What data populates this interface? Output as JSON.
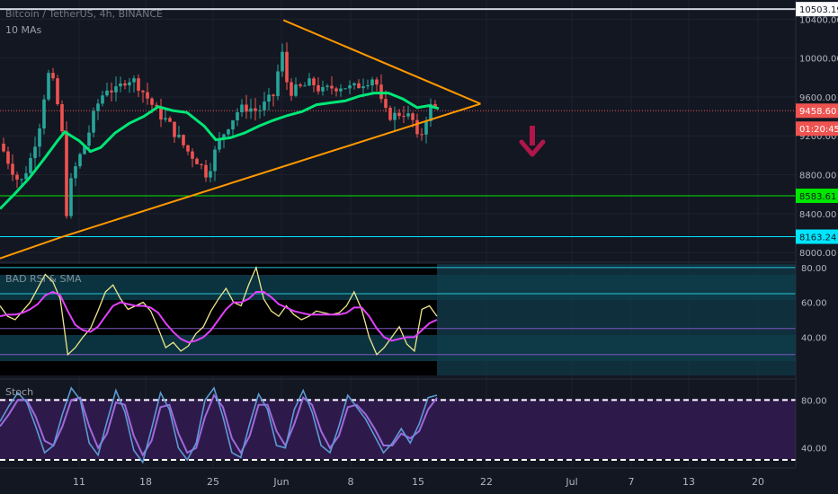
{
  "header": {
    "symbol_line": "Bitcoin / TetherUS, 4h, BINANCE",
    "indicator": "10 MAs"
  },
  "panes": {
    "rsi_label": "BAD RSI & SMA",
    "stoch_label": "Stoch"
  },
  "colors": {
    "bg": "#131722",
    "candle_up": "#26a69a",
    "candle_down": "#ef5350",
    "ma": "#00e676",
    "triangle": "#ff9800",
    "arrow": "#b0164a",
    "rsi_line": "#f0e68c",
    "rsi_sma": "#e040fb",
    "stoch_k": "#5b9bd5",
    "stoch_d": "#9c6ade"
  },
  "chart_data": [
    {
      "type": "candlestick",
      "title": "Bitcoin / TetherUS, 4h, BINANCE",
      "x_ticks": [
        "11",
        "18",
        "25",
        "Jun",
        "8",
        "15",
        "22",
        "Jul",
        "7",
        "13",
        "20"
      ],
      "y_ticks": [
        10400,
        10000,
        9600,
        9200,
        8800,
        8400,
        8000
      ],
      "ylim": [
        7900,
        10560
      ],
      "price_labels": [
        {
          "value": "10503.19",
          "color": "#ffffff",
          "text_color": "#131722"
        },
        {
          "value": "9458.60",
          "color": "#ef5350",
          "text_color": "#ffffff"
        },
        {
          "value": "01:20:45",
          "color": "#ef5350",
          "text_color": "#ffffff"
        },
        {
          "value": "8583.61",
          "color": "#00e600",
          "text_color": "#131722"
        },
        {
          "value": "8163.24",
          "color": "#00e5ff",
          "text_color": "#131722"
        }
      ],
      "levels": [
        {
          "value": 10503.19,
          "color": "#d1d4dc"
        },
        {
          "value": 9458.6,
          "color": "#ef5350",
          "style": "dotted"
        },
        {
          "value": 8583.61,
          "color": "#00e600"
        },
        {
          "value": 8163.24,
          "color": "#00e5ff"
        }
      ],
      "price_path": [
        {
          "x": 0,
          "v": 9120
        },
        {
          "x": 0.7,
          "v": 8900
        },
        {
          "x": 1.4,
          "v": 8700
        },
        {
          "x": 2.1,
          "v": 8950
        },
        {
          "x": 2.8,
          "v": 9350
        },
        {
          "x": 3.3,
          "v": 9850
        },
        {
          "x": 3.8,
          "v": 9700
        },
        {
          "x": 4.3,
          "v": 9250
        },
        {
          "x": 4.6,
          "v": 8400
        },
        {
          "x": 4.9,
          "v": 8700
        },
        {
          "x": 5.3,
          "v": 8900
        },
        {
          "x": 6,
          "v": 9150
        },
        {
          "x": 6.7,
          "v": 9500
        },
        {
          "x": 7.4,
          "v": 9700
        },
        {
          "x": 8.1,
          "v": 9650
        },
        {
          "x": 8.8,
          "v": 9800
        },
        {
          "x": 9.5,
          "v": 9750
        },
        {
          "x": 10.2,
          "v": 9600
        },
        {
          "x": 10.9,
          "v": 9450
        },
        {
          "x": 11.6,
          "v": 9350
        },
        {
          "x": 12.3,
          "v": 9200
        },
        {
          "x": 13,
          "v": 9050
        },
        {
          "x": 13.7,
          "v": 8950
        },
        {
          "x": 14.4,
          "v": 8800
        },
        {
          "x": 15.1,
          "v": 9100
        },
        {
          "x": 15.8,
          "v": 9300
        },
        {
          "x": 16.5,
          "v": 9450
        },
        {
          "x": 17.2,
          "v": 9500
        },
        {
          "x": 17.9,
          "v": 9450
        },
        {
          "x": 18.6,
          "v": 9550
        },
        {
          "x": 19.2,
          "v": 9650
        },
        {
          "x": 19.5,
          "v": 10200
        },
        {
          "x": 19.8,
          "v": 9800
        },
        {
          "x": 20.3,
          "v": 9650
        },
        {
          "x": 21,
          "v": 9700
        },
        {
          "x": 21.7,
          "v": 9750
        },
        {
          "x": 22.4,
          "v": 9650
        },
        {
          "x": 23.1,
          "v": 9700
        },
        {
          "x": 23.8,
          "v": 9720
        },
        {
          "x": 24.5,
          "v": 9680
        },
        {
          "x": 25.2,
          "v": 9750
        },
        {
          "x": 25.9,
          "v": 9800
        },
        {
          "x": 26.3,
          "v": 9700
        },
        {
          "x": 26.6,
          "v": 9450
        },
        {
          "x": 27.3,
          "v": 9400
        },
        {
          "x": 28,
          "v": 9450
        },
        {
          "x": 28.7,
          "v": 9350
        },
        {
          "x": 29.1,
          "v": 9100
        },
        {
          "x": 29.5,
          "v": 9350
        },
        {
          "x": 29.9,
          "v": 9500
        },
        {
          "x": 30.5,
          "v": 9460
        }
      ],
      "ma_path": [
        {
          "x": 0,
          "v": 8450
        },
        {
          "x": 1,
          "v": 8600
        },
        {
          "x": 2,
          "v": 8760
        },
        {
          "x": 3,
          "v": 8950
        },
        {
          "x": 4,
          "v": 9150
        },
        {
          "x": 4.5,
          "v": 9240
        },
        {
          "x": 5.5,
          "v": 9150
        },
        {
          "x": 6.3,
          "v": 9040
        },
        {
          "x": 7,
          "v": 9080
        },
        {
          "x": 8,
          "v": 9230
        },
        {
          "x": 9,
          "v": 9330
        },
        {
          "x": 10,
          "v": 9400
        },
        {
          "x": 11,
          "v": 9500
        },
        {
          "x": 12,
          "v": 9460
        },
        {
          "x": 13,
          "v": 9440
        },
        {
          "x": 14.2,
          "v": 9300
        },
        {
          "x": 15,
          "v": 9160
        },
        {
          "x": 16,
          "v": 9180
        },
        {
          "x": 17,
          "v": 9230
        },
        {
          "x": 18,
          "v": 9300
        },
        {
          "x": 19,
          "v": 9360
        },
        {
          "x": 20,
          "v": 9410
        },
        {
          "x": 21,
          "v": 9450
        },
        {
          "x": 22,
          "v": 9520
        },
        {
          "x": 23,
          "v": 9540
        },
        {
          "x": 24,
          "v": 9560
        },
        {
          "x": 25,
          "v": 9610
        },
        {
          "x": 26,
          "v": 9640
        },
        {
          "x": 27,
          "v": 9640
        },
        {
          "x": 28,
          "v": 9580
        },
        {
          "x": 29,
          "v": 9490
        },
        {
          "x": 29.8,
          "v": 9510
        },
        {
          "x": 30.5,
          "v": 9480
        }
      ],
      "triangle": {
        "apex": {
          "x": 33.4,
          "v": 9530
        },
        "upper_start": {
          "x": 19.7,
          "v": 10390
        },
        "lower_start": {
          "x": 4.3,
          "v": 8160
        }
      }
    },
    {
      "type": "line",
      "title": "BAD RSI & SMA",
      "y_ticks": [
        80,
        60,
        40
      ],
      "ylim": [
        18,
        82
      ],
      "levels": [
        80,
        65,
        45,
        30
      ],
      "rsi": [
        58,
        52,
        50,
        55,
        60,
        68,
        76,
        72,
        62,
        30,
        34,
        40,
        45,
        55,
        66,
        70,
        62,
        56,
        58,
        60,
        55,
        45,
        34,
        37,
        32,
        35,
        42,
        46,
        55,
        62,
        68,
        60,
        58,
        70,
        80,
        62,
        55,
        52,
        58,
        53,
        50,
        52,
        55,
        54,
        53,
        54,
        58,
        66,
        56,
        40,
        30,
        34,
        40,
        46,
        36,
        32,
        56,
        58,
        52
      ],
      "sma": [
        52,
        53,
        53,
        54,
        56,
        59,
        64,
        66,
        64,
        55,
        47,
        44,
        43,
        46,
        52,
        58,
        60,
        59,
        58,
        58,
        57,
        54,
        48,
        43,
        39,
        37,
        38,
        40,
        44,
        50,
        56,
        60,
        60,
        62,
        66,
        66,
        63,
        59,
        57,
        55,
        54,
        53,
        53,
        53,
        53,
        53,
        54,
        57,
        57,
        52,
        45,
        40,
        38,
        39,
        40,
        40,
        44,
        48,
        50
      ]
    },
    {
      "type": "line",
      "title": "Stoch",
      "y_ticks": [
        80,
        40
      ],
      "ylim": [
        24,
        96
      ],
      "levels": [
        80,
        30
      ],
      "k": [
        62,
        75,
        86,
        78,
        58,
        36,
        42,
        68,
        90,
        80,
        44,
        34,
        62,
        88,
        70,
        38,
        28,
        56,
        86,
        72,
        40,
        30,
        44,
        80,
        90,
        66,
        36,
        32,
        60,
        85,
        72,
        42,
        40,
        72,
        88,
        70,
        42,
        36,
        58,
        84,
        74,
        64,
        50,
        36,
        44,
        56,
        44,
        60,
        82,
        84
      ],
      "d": [
        58,
        68,
        80,
        80,
        66,
        46,
        42,
        58,
        80,
        82,
        58,
        40,
        52,
        78,
        76,
        50,
        34,
        46,
        74,
        76,
        52,
        36,
        40,
        66,
        84,
        74,
        48,
        36,
        50,
        76,
        76,
        54,
        42,
        60,
        82,
        76,
        54,
        40,
        50,
        74,
        76,
        68,
        56,
        42,
        42,
        52,
        48,
        54,
        72,
        82
      ]
    }
  ]
}
